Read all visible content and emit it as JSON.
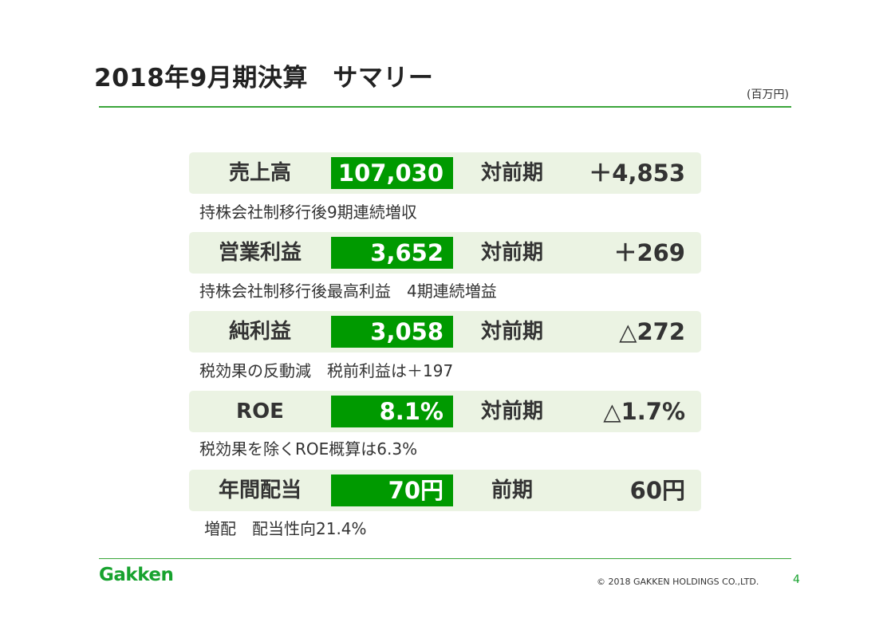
{
  "header": {
    "title": "2018年9月期決算　サマリー",
    "unit": "(百万円)"
  },
  "rows": [
    {
      "label": "売上高",
      "value": "107,030",
      "compare_label": "対前期",
      "compare_value": "＋4,853",
      "note": "持株会社制移行後9期連続増収"
    },
    {
      "label": "営業利益",
      "value": "3,652",
      "compare_label": "対前期",
      "compare_value": "＋269",
      "note": "持株会社制移行後最高利益　4期連続増益"
    },
    {
      "label": "純利益",
      "value": "3,058",
      "compare_label": "対前期",
      "compare_value": "△272",
      "note": "税効果の反動減　税前利益は＋197"
    },
    {
      "label": "ROE",
      "value": "8.1%",
      "compare_label": "対前期",
      "compare_value": "△1.7%",
      "note": "税効果を除くROE概算は6.3%"
    },
    {
      "label": "年間配当",
      "value": "70円",
      "compare_label": "前期",
      "compare_value": "60円",
      "note": "増配　配当性向21.4%"
    }
  ],
  "footer": {
    "logo": "Gakken",
    "copyright": "©  2018 GAKKEN HOLDINGS CO.,LTD.",
    "page_number": "4"
  },
  "colors": {
    "accent": "#009a00",
    "row_background": "#ebf3e3",
    "brand": "#17a22e"
  }
}
